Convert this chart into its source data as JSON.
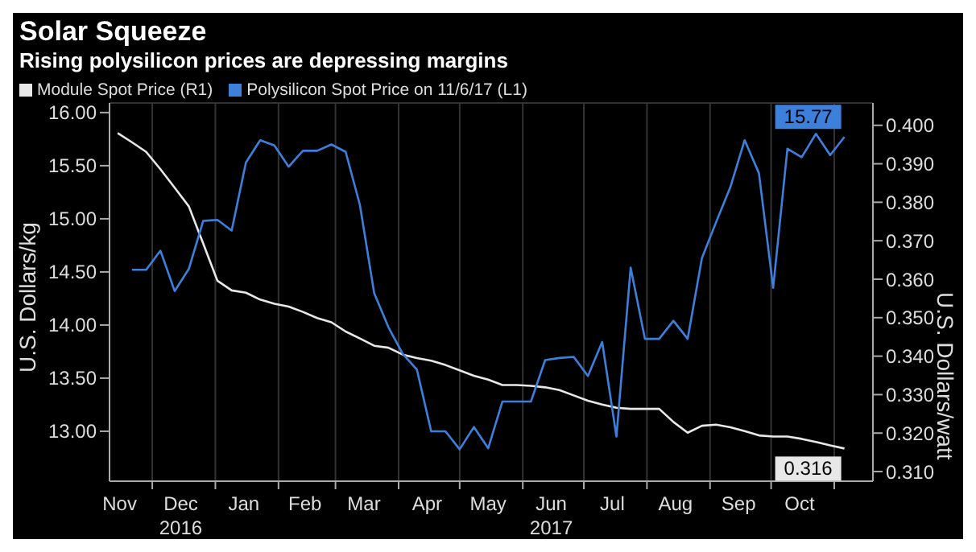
{
  "chart_data": {
    "type": "line",
    "title": "Solar Squeeze",
    "subtitle": "Rising polysilicon prices are depressing margins",
    "ylabel": "U.S. Dollars/kg",
    "y2label": "U.S. Dollars/watt",
    "x": [
      "2016-11-14",
      "2016-11-21",
      "2016-11-28",
      "2016-12-05",
      "2016-12-12",
      "2016-12-19",
      "2016-12-26",
      "2017-01-02",
      "2017-01-09",
      "2017-01-16",
      "2017-01-23",
      "2017-01-30",
      "2017-02-06",
      "2017-02-13",
      "2017-02-20",
      "2017-02-27",
      "2017-03-06",
      "2017-03-13",
      "2017-03-20",
      "2017-03-27",
      "2017-04-03",
      "2017-04-10",
      "2017-04-17",
      "2017-04-24",
      "2017-05-01",
      "2017-05-08",
      "2017-05-15",
      "2017-05-22",
      "2017-05-29",
      "2017-06-05",
      "2017-06-12",
      "2017-06-19",
      "2017-06-26",
      "2017-07-03",
      "2017-07-10",
      "2017-07-17",
      "2017-07-24",
      "2017-07-31",
      "2017-08-07",
      "2017-08-14",
      "2017-08-21",
      "2017-08-28",
      "2017-09-04",
      "2017-09-11",
      "2017-09-18",
      "2017-09-25",
      "2017-10-02",
      "2017-10-09",
      "2017-10-16",
      "2017-10-23",
      "2017-10-30",
      "2017-11-06"
    ],
    "series": [
      {
        "name": "Module Spot Price (R1)",
        "color": "#e8e8e8",
        "axis": "y2",
        "values": [
          0.398,
          0.3956,
          0.3931,
          0.3886,
          0.3838,
          0.3789,
          0.3693,
          0.3596,
          0.3571,
          0.3565,
          0.3547,
          0.3536,
          0.3529,
          0.3515,
          0.3499,
          0.3488,
          0.3464,
          0.3446,
          0.3427,
          0.3422,
          0.3404,
          0.3395,
          0.3388,
          0.3377,
          0.3363,
          0.3349,
          0.3339,
          0.3325,
          0.3325,
          0.3323,
          0.3319,
          0.3312,
          0.3298,
          0.3284,
          0.3274,
          0.3266,
          0.3263,
          0.3263,
          0.3263,
          0.3229,
          0.3201,
          0.3219,
          0.3222,
          0.3215,
          0.3205,
          0.3194,
          0.3191,
          0.3191,
          0.3185,
          0.3177,
          0.3168,
          0.316
        ],
        "value_labels": [
          null,
          null,
          null,
          null,
          null,
          null,
          null,
          null,
          null,
          null,
          null,
          null,
          null,
          null,
          null,
          null,
          null,
          null,
          null,
          null,
          null,
          null,
          null,
          null,
          null,
          null,
          null,
          null,
          null,
          null,
          null,
          null,
          null,
          null,
          null,
          null,
          null,
          null,
          null,
          null,
          null,
          null,
          null,
          null,
          null,
          null,
          null,
          null,
          null,
          null,
          null,
          "0.316"
        ]
      },
      {
        "name": "Polysilicon Spot Price on 11/6/17 (L1)",
        "color": "#3d80dc",
        "axis": "y",
        "values": [
          null,
          14.52,
          14.52,
          14.7,
          14.32,
          14.53,
          14.98,
          14.99,
          14.89,
          15.53,
          15.74,
          15.69,
          15.49,
          15.64,
          15.64,
          15.7,
          15.63,
          15.13,
          14.3,
          13.98,
          13.73,
          13.58,
          13.0,
          13.0,
          12.83,
          13.04,
          12.84,
          13.28,
          13.28,
          13.28,
          13.67,
          13.69,
          13.7,
          13.52,
          13.84,
          12.95,
          14.54,
          13.87,
          13.87,
          14.04,
          13.87,
          14.63,
          14.97,
          15.3,
          15.74,
          15.43,
          14.35,
          15.66,
          15.58,
          15.8,
          15.6,
          15.77
        ],
        "value_labels": [
          null,
          null,
          null,
          null,
          null,
          null,
          null,
          null,
          null,
          null,
          null,
          null,
          null,
          null,
          null,
          null,
          null,
          null,
          null,
          null,
          null,
          null,
          null,
          null,
          null,
          null,
          null,
          null,
          null,
          null,
          null,
          null,
          null,
          null,
          null,
          null,
          null,
          null,
          null,
          null,
          null,
          null,
          null,
          null,
          null,
          null,
          null,
          null,
          null,
          null,
          null,
          "15.77"
        ]
      }
    ],
    "xlim": [
      "2016-11-10",
      "2017-11-20"
    ],
    "xticks": [
      {
        "value": "2016-11-15",
        "label": "Nov"
      },
      {
        "value": "2016-12-01",
        "label": null
      },
      {
        "value": "2016-12-15",
        "label": "Dec\n2016"
      },
      {
        "value": "2017-01-01",
        "label": null
      },
      {
        "value": "2017-01-15",
        "label": "Jan"
      },
      {
        "value": "2017-02-01",
        "label": null
      },
      {
        "value": "2017-02-14",
        "label": "Feb"
      },
      {
        "value": "2017-03-01",
        "label": null
      },
      {
        "value": "2017-03-15",
        "label": "Mar"
      },
      {
        "value": "2017-04-01",
        "label": null
      },
      {
        "value": "2017-04-15",
        "label": "Apr"
      },
      {
        "value": "2017-05-01",
        "label": null
      },
      {
        "value": "2017-05-15",
        "label": "May"
      },
      {
        "value": "2017-06-01",
        "label": null
      },
      {
        "value": "2017-06-15",
        "label": "Jun\n2017"
      },
      {
        "value": "2017-07-01",
        "label": null
      },
      {
        "value": "2017-07-15",
        "label": "Jul"
      },
      {
        "value": "2017-08-01",
        "label": null
      },
      {
        "value": "2017-08-15",
        "label": "Aug"
      },
      {
        "value": "2017-09-01",
        "label": null
      },
      {
        "value": "2017-09-15",
        "label": "Sep"
      },
      {
        "value": "2017-10-01",
        "label": null
      },
      {
        "value": "2017-10-15",
        "label": "Oct"
      },
      {
        "value": "2017-11-01",
        "label": null
      }
    ],
    "ylim": [
      12.53,
      16.09
    ],
    "yticks": [
      {
        "value": 13,
        "label": "13.00"
      },
      {
        "value": 13.5,
        "label": "13.50"
      },
      {
        "value": 14,
        "label": "14.00"
      },
      {
        "value": 14.5,
        "label": "14.50"
      },
      {
        "value": 15,
        "label": "15.00"
      },
      {
        "value": 15.5,
        "label": "15.50"
      },
      {
        "value": 16,
        "label": "16.00"
      }
    ],
    "y2lim": [
      0.3075,
      0.4058
    ],
    "y2ticks": [
      {
        "value": 0.31,
        "label": "0.310"
      },
      {
        "value": 0.32,
        "label": "0.320"
      },
      {
        "value": 0.33,
        "label": "0.330"
      },
      {
        "value": 0.34,
        "label": "0.340"
      },
      {
        "value": 0.35,
        "label": "0.350"
      },
      {
        "value": 0.36,
        "label": "0.360"
      },
      {
        "value": 0.37,
        "label": "0.370"
      },
      {
        "value": 0.38,
        "label": "0.380"
      },
      {
        "value": 0.39,
        "label": "0.390"
      },
      {
        "value": 0.4,
        "label": "0.400"
      }
    ],
    "grid": true,
    "legend": "top left",
    "marker": "none",
    "line_style": "solid"
  }
}
